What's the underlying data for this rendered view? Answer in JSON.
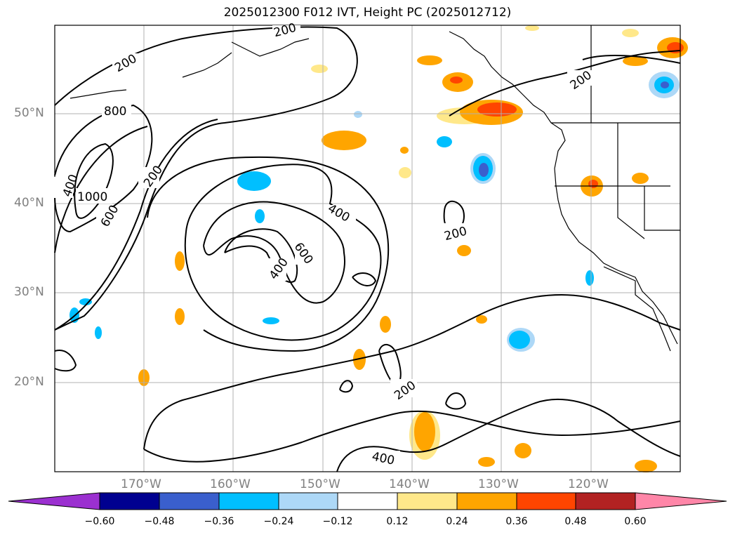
{
  "title": "2025012300 F012 IVT, Height PC (2025012712)",
  "lat_labels": [
    "50°N",
    "40°N",
    "30°N",
    "20°N"
  ],
  "lon_labels": [
    "170°W",
    "160°W",
    "150°W",
    "140°W",
    "130°W",
    "120°W"
  ],
  "contour_labels": [
    {
      "text": "200",
      "id": "c1"
    },
    {
      "text": "200",
      "id": "c2"
    },
    {
      "text": "800",
      "id": "c3"
    },
    {
      "text": "400",
      "id": "c4"
    },
    {
      "text": "1000",
      "id": "c5"
    },
    {
      "text": "600",
      "id": "c6"
    },
    {
      "text": "200",
      "id": "c7"
    },
    {
      "text": "400",
      "id": "c8"
    },
    {
      "text": "600",
      "id": "c9"
    },
    {
      "text": "400",
      "id": "c10"
    },
    {
      "text": "200",
      "id": "c11"
    },
    {
      "text": "200",
      "id": "c12"
    },
    {
      "text": "200",
      "id": "c13"
    },
    {
      "text": "400",
      "id": "c14"
    }
  ],
  "colorbar": {
    "ticks": [
      "−0.60",
      "−0.48",
      "−0.36",
      "−0.24",
      "−0.12",
      "0.12",
      "0.24",
      "0.36",
      "0.48",
      "0.60"
    ],
    "colors": [
      "#9b30d0",
      "#000090",
      "#3a5fcd",
      "#00bfff",
      "#add8f7",
      "#ffffff",
      "#ffe88a",
      "#ffa500",
      "#ff4500",
      "#b22222",
      "#ff86a8"
    ]
  }
}
